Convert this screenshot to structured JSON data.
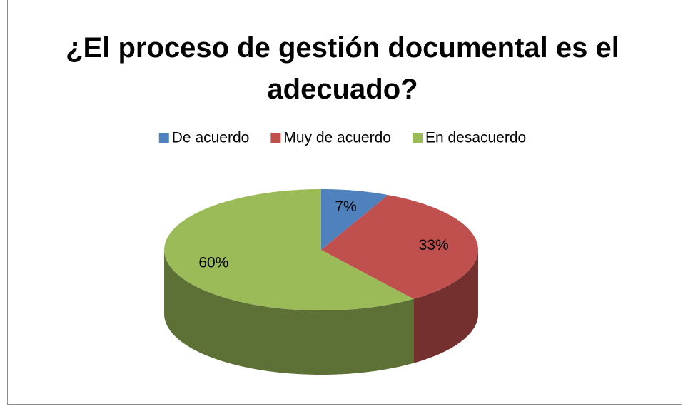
{
  "chart_data": {
    "type": "pie",
    "title": "¿El proceso de gestión documental es el adecuado?",
    "categories": [
      "De acuerdo",
      "Muy de acuerdo",
      "En desacuerdo"
    ],
    "values": [
      7,
      33,
      60
    ],
    "value_labels": [
      "7%",
      "33%",
      "60%"
    ],
    "colors": [
      "#4f81bd",
      "#c0504d",
      "#9bbb59"
    ],
    "legend": "top"
  }
}
